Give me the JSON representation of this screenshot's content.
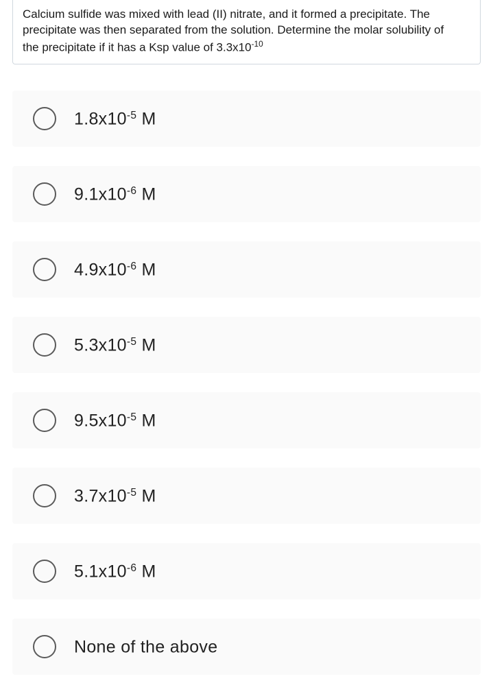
{
  "question": {
    "line1": "Calcium sulfide was mixed with lead (II) nitrate, and it formed a precipitate. The",
    "line2": "precipitate was then separated from the solution. Determine the molar solubility of",
    "line3_prefix": "the precipitate if it has a Ksp value of 3.3x10",
    "line3_exp": "-10"
  },
  "options": [
    {
      "base": "1.8x10",
      "exp": "-5",
      "unit": " M"
    },
    {
      "base": "9.1x10",
      "exp": "-6",
      "unit": " M"
    },
    {
      "base": "4.9x10",
      "exp": "-6",
      "unit": " M"
    },
    {
      "base": "5.3x10",
      "exp": "-5",
      "unit": " M"
    },
    {
      "base": "9.5x10",
      "exp": "-5",
      "unit": " M"
    },
    {
      "base": "3.7x10",
      "exp": "-5",
      "unit": " M"
    },
    {
      "base": "5.1x10",
      "exp": "-6",
      "unit": " M"
    },
    {
      "base": "None of the above",
      "exp": "",
      "unit": ""
    }
  ],
  "colors": {
    "option_bg": "#fafafa",
    "radio_border": "#5a5a5a",
    "text": "#222222",
    "question_text": "#1a1a1a",
    "box_border": "#d0d7de",
    "page_bg": "#ffffff"
  }
}
